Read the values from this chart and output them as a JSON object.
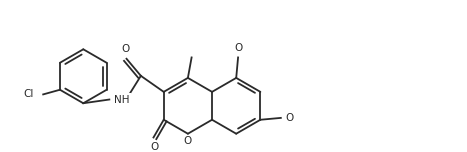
{
  "bg_color": "#ffffff",
  "line_color": "#2a2a2a",
  "line_width": 1.3,
  "font_size": 7.5,
  "figsize": [
    4.67,
    1.52
  ],
  "dpi": 100,
  "xlim": [
    0,
    467
  ],
  "ylim": [
    0,
    152
  ]
}
